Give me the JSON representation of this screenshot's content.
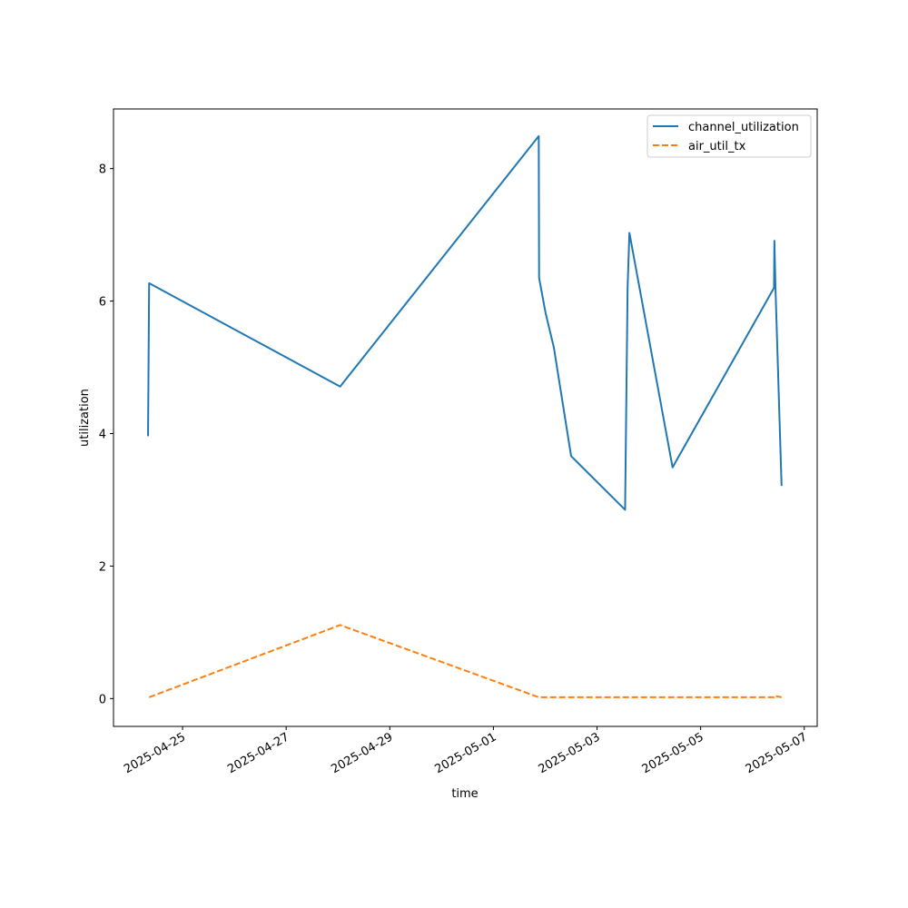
{
  "chart_data": {
    "type": "line",
    "xlabel": "time",
    "ylabel": "utilization",
    "x_ticks": [
      "2025-04-25",
      "2025-04-27",
      "2025-04-29",
      "2025-05-01",
      "2025-05-03",
      "2025-05-05",
      "2025-05-07"
    ],
    "y_ticks": [
      0,
      2,
      4,
      6,
      8
    ],
    "xlim": [
      "2025-04-23T16:00",
      "2025-05-07T06:00"
    ],
    "ylim": [
      -0.42,
      8.9
    ],
    "grid": false,
    "legend_position": "top-right",
    "series": [
      {
        "name": "channel_utilization",
        "color": "#1f77b4",
        "style": "solid",
        "points": [
          [
            "2025-04-24T08:00",
            3.96
          ],
          [
            "2025-04-24T08:30",
            6.27
          ],
          [
            "2025-04-28T01:00",
            4.71
          ],
          [
            "2025-05-01T21:00",
            8.49
          ],
          [
            "2025-05-01T21:10",
            6.35
          ],
          [
            "2025-05-02T00:10",
            5.82
          ],
          [
            "2025-05-02T04:00",
            5.3
          ],
          [
            "2025-05-02T12:00",
            3.66
          ],
          [
            "2025-05-03T13:00",
            2.85
          ],
          [
            "2025-05-03T14:10",
            6.2
          ],
          [
            "2025-05-03T15:00",
            7.03
          ],
          [
            "2025-05-04T11:00",
            3.49
          ],
          [
            "2025-05-06T10:00",
            6.2
          ],
          [
            "2025-05-06T10:10",
            6.91
          ],
          [
            "2025-05-06T10:40",
            6.2
          ],
          [
            "2025-05-06T13:30",
            3.21
          ]
        ]
      },
      {
        "name": "air_util_tx",
        "color": "#ff7f0e",
        "style": "dashed",
        "points": [
          [
            "2025-04-24T08:30",
            0.02
          ],
          [
            "2025-04-28T01:00",
            1.11
          ],
          [
            "2025-05-01T21:00",
            0.02
          ],
          [
            "2025-05-06T10:00",
            0.02
          ],
          [
            "2025-05-06T10:10",
            0.04
          ],
          [
            "2025-05-06T13:30",
            0.02
          ]
        ]
      }
    ]
  }
}
